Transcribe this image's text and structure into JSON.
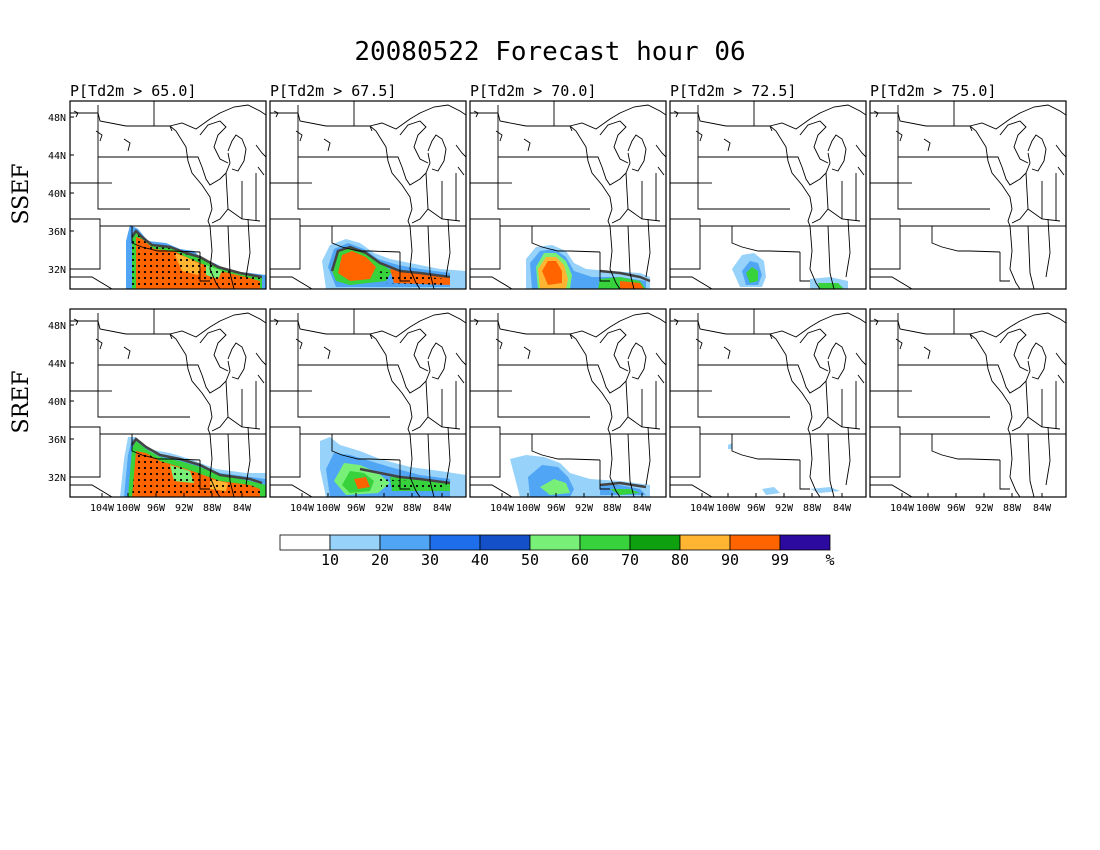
{
  "title": "20080522 Forecast hour 06",
  "panel_titles": [
    "P[Td2m > 65.0]",
    "P[Td2m > 67.5]",
    "P[Td2m > 70.0]",
    "P[Td2m > 72.5]",
    "P[Td2m > 75.0]"
  ],
  "row_labels": [
    "SSEF",
    "SREF"
  ],
  "lat_ticks": [
    "48N",
    "44N",
    "40N",
    "36N",
    "32N"
  ],
  "lon_ticks": [
    "104W",
    "100W",
    "96W",
    "92W",
    "88W",
    "84W"
  ],
  "colorbar": {
    "colors": [
      "#ffffff",
      "#96d2fa",
      "#50a5f5",
      "#1e6eeb",
      "#1450c8",
      "#78f078",
      "#37d23c",
      "#0fa00f",
      "#ffb432",
      "#ff6400",
      "#2c0aa0"
    ],
    "labels": [
      "10",
      "20",
      "30",
      "40",
      "50",
      "60",
      "70",
      "80",
      "90",
      "99",
      "%"
    ]
  },
  "legend_colors": {
    "light_blue": "#96d2fa",
    "blue": "#50a5f5",
    "light_green": "#78f078",
    "green": "#37d23c",
    "dark_green": "#0fa00f",
    "orange_light": "#ffb432",
    "orange": "#ff6400",
    "contour": "#444444"
  }
}
